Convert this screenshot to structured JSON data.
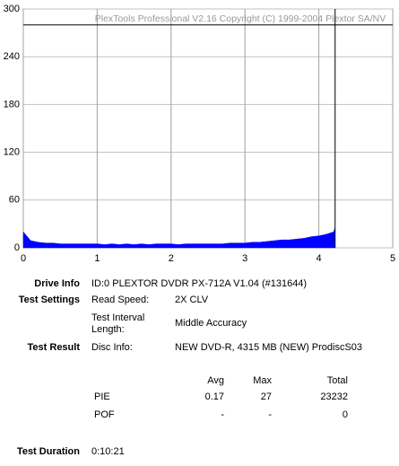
{
  "chart_data": {
    "type": "area",
    "watermark": "PlexTools Professional V2.16 Copyright (C) 1999-2004 Plextor SA/NV",
    "x": [
      0,
      0.1,
      0.2,
      0.3,
      0.4,
      0.5,
      0.6,
      0.7,
      0.8,
      0.9,
      1.0,
      1.1,
      1.2,
      1.3,
      1.4,
      1.5,
      1.6,
      1.7,
      1.8,
      1.9,
      2.0,
      2.1,
      2.2,
      2.3,
      2.4,
      2.5,
      2.6,
      2.7,
      2.8,
      2.9,
      3.0,
      3.1,
      3.2,
      3.3,
      3.4,
      3.5,
      3.6,
      3.7,
      3.8,
      3.9,
      4.0,
      4.1,
      4.2,
      4.22
    ],
    "values": [
      20,
      9,
      7,
      6,
      6,
      5,
      5,
      5,
      5,
      5,
      5,
      4,
      5,
      4,
      5,
      4,
      5,
      4,
      5,
      5,
      5,
      4,
      5,
      5,
      5,
      5,
      5,
      5,
      6,
      6,
      6,
      7,
      7,
      8,
      9,
      10,
      10,
      11,
      12,
      14,
      15,
      17,
      20,
      25
    ],
    "color": "#0000ff",
    "xlim": [
      0,
      5
    ],
    "xticks": [
      0,
      1,
      2,
      3,
      4,
      5
    ],
    "ylim": [
      0,
      300
    ],
    "yticks": [
      0,
      60,
      120,
      180,
      240,
      300
    ],
    "grid": true,
    "end_line_x": 4.22,
    "limit_line_y": 280
  },
  "info": {
    "drive_label": "Drive Info",
    "drive_value": "ID:0 PLEXTOR DVDR PX-712A V1.04 (#131644)",
    "settings_label": "Test Settings",
    "read_speed_label": "Read Speed:",
    "read_speed_value": "2X CLV",
    "interval_label": [
      "Test Interval",
      "Length:"
    ],
    "interval_value": "Middle Accuracy",
    "result_label": "Test Result",
    "disc_label": "Disc Info:",
    "disc_value": "NEW DVD-R, 4315 MB (NEW) ProdiscS03",
    "table": {
      "header": [
        "Avg",
        "Max",
        "Total"
      ],
      "rows": [
        {
          "name": "PIE",
          "cells": [
            "0.17",
            "27",
            "23232"
          ]
        },
        {
          "name": "POF",
          "cells": [
            "-",
            "-",
            "0"
          ]
        }
      ]
    },
    "duration_label": "Test Duration",
    "duration_value": "0:10:21"
  }
}
